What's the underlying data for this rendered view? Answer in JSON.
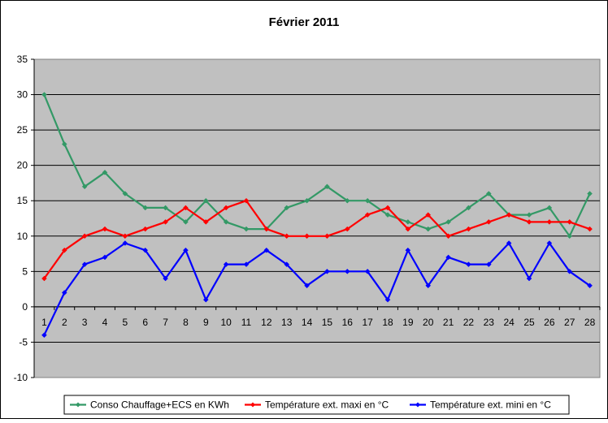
{
  "chart_data": {
    "type": "line",
    "title": "Février 2011",
    "xlabel": "",
    "ylabel": "",
    "categories": [
      "1",
      "2",
      "3",
      "4",
      "5",
      "6",
      "7",
      "8",
      "9",
      "10",
      "11",
      "12",
      "13",
      "14",
      "15",
      "16",
      "17",
      "18",
      "19",
      "20",
      "21",
      "22",
      "23",
      "24",
      "25",
      "26",
      "27",
      "28"
    ],
    "ylim": [
      -10,
      35
    ],
    "yticks": [
      -10,
      -5,
      0,
      5,
      10,
      15,
      20,
      25,
      30,
      35
    ],
    "grid": true,
    "legend_position": "bottom",
    "plot_background": "#c0c0c0",
    "series": [
      {
        "name": "Conso Chauffage+ECS en KWh",
        "color": "#339966",
        "values": [
          30,
          23,
          17,
          19,
          16,
          14,
          14,
          12,
          15,
          12,
          11,
          11,
          14,
          15,
          17,
          15,
          15,
          13,
          12,
          11,
          12,
          14,
          16,
          13,
          13,
          14,
          10,
          16
        ]
      },
      {
        "name": "Température ext. maxi en °C",
        "color": "#ff0000",
        "values": [
          4,
          8,
          10,
          11,
          10,
          11,
          12,
          14,
          12,
          14,
          15,
          11,
          10,
          10,
          10,
          11,
          13,
          14,
          11,
          13,
          10,
          11,
          12,
          13,
          12,
          12,
          12,
          11
        ]
      },
      {
        "name": "Température ext. mini en °C",
        "color": "#0000ff",
        "values": [
          -4,
          2,
          6,
          7,
          9,
          8,
          4,
          8,
          1,
          6,
          6,
          8,
          6,
          3,
          5,
          5,
          5,
          1,
          8,
          3,
          7,
          6,
          6,
          9,
          4,
          9,
          5,
          3
        ]
      }
    ]
  }
}
